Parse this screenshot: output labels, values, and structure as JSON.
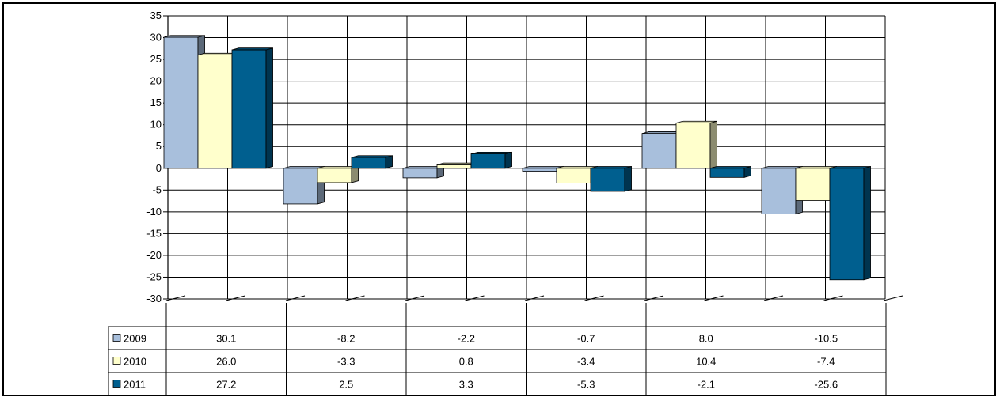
{
  "chart_data": {
    "type": "bar",
    "categories": [
      "",
      "",
      "",
      "",
      "",
      ""
    ],
    "series": [
      {
        "name": "2009",
        "values": [
          30.1,
          -8.2,
          -2.2,
          -0.7,
          8.0,
          -10.5
        ],
        "color": "#a8bfdc"
      },
      {
        "name": "2010",
        "values": [
          26.0,
          -3.3,
          0.8,
          -3.4,
          10.4,
          -7.4
        ],
        "color": "#ffffcc"
      },
      {
        "name": "2011",
        "values": [
          27.2,
          2.5,
          3.3,
          -5.3,
          -2.1,
          -25.6
        ],
        "color": "#005f8f"
      }
    ],
    "table_values": [
      [
        "30.1",
        "-8.2",
        "-2.2",
        "-0.7",
        "8.0",
        "-10.5"
      ],
      [
        "26.0",
        "-3.3",
        "0.8",
        "-3.4",
        "10.4",
        "-7.4"
      ],
      [
        "27.2",
        "2.5",
        "3.3",
        "-5.3",
        "-2.1",
        "-25.6"
      ]
    ],
    "yticks": [
      "35",
      "30",
      "25",
      "20",
      "15",
      "10",
      "5",
      "0",
      "-5",
      "-10",
      "-15",
      "-20",
      "-25",
      "-30"
    ],
    "ylim": [
      -30,
      35
    ],
    "grid": true,
    "legend": "data-table-left",
    "xlabel": "",
    "ylabel": "",
    "title": ""
  }
}
